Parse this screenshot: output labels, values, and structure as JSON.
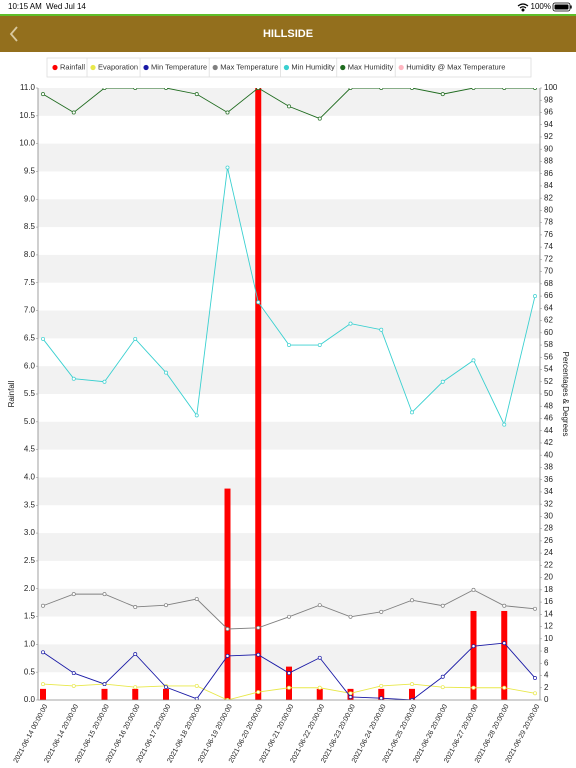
{
  "status_bar": {
    "time": "10:15 AM",
    "date": "Wed Jul 14",
    "battery": "100%"
  },
  "header": {
    "title": "HILLSIDE"
  },
  "chart_data": {
    "type": "combo",
    "categories": [
      "2021-06-14 00:00:00",
      "2021-06-14 20:00:00",
      "2021-06-15 20:00:00",
      "2021-06-16 20:00:00",
      "2021-06-17 20:00:00",
      "2021-06-18 20:00:00",
      "2021-06-19 20:00:00",
      "2021-06-20 20:00:00",
      "2021-06-21 20:00:00",
      "2021-06-22 20:00:00",
      "2021-06-23 20:00:00",
      "2021-06-24 20:00:00",
      "2021-06-25 20:00:00",
      "2021-06-26 20:00:00",
      "2021-06-27 20:00:00",
      "2021-06-28 20:00:00",
      "2021-06-29 20:00:00"
    ],
    "y_label": "Rainfall",
    "y2_label": "Percentages & Degrees",
    "ylim": [
      0,
      11
    ],
    "yticks": [
      {
        "value": 0,
        "label": "0.0"
      },
      0.5,
      {
        "value": 1,
        "label": "1.0"
      },
      1.5,
      {
        "value": 2,
        "label": "2.0"
      },
      2.5,
      {
        "value": 3,
        "label": "3.0"
      },
      3.5,
      {
        "value": 4,
        "label": "4.0"
      },
      4.5,
      {
        "value": 5,
        "label": "5.0"
      },
      5.5,
      {
        "value": 6,
        "label": "6.0"
      },
      6.5,
      {
        "value": 7,
        "label": "7.0"
      },
      7.5,
      {
        "value": 8,
        "label": "8.0"
      },
      8.5,
      {
        "value": 9,
        "label": "9.0"
      },
      9.5,
      {
        "value": 10,
        "label": "10.0"
      },
      10.5,
      {
        "value": 11,
        "label": "11.0"
      }
    ],
    "y2lim": [
      0,
      100
    ],
    "y2ticks": [
      0,
      2,
      4,
      6,
      8,
      10,
      12,
      14,
      16,
      18,
      20,
      22,
      24,
      26,
      28,
      30,
      32,
      34,
      36,
      38,
      40,
      42,
      44,
      46,
      48,
      50,
      52,
      54,
      56,
      58,
      60,
      62,
      64,
      66,
      68,
      70,
      72,
      74,
      76,
      78,
      80,
      82,
      84,
      86,
      88,
      90,
      92,
      94,
      96,
      98,
      100
    ],
    "grid": true,
    "legend": "top",
    "series": [
      {
        "name": "Rainfall",
        "type": "bar",
        "color": "#ff0000",
        "values": [
          0.2,
          0,
          0.2,
          0.2,
          0.2,
          0,
          3.8,
          11,
          0.6,
          0.2,
          0.2,
          0.2,
          0.2,
          0,
          1.6,
          1.6,
          0
        ]
      },
      {
        "name": "Evaporation",
        "type": "line",
        "axis": "y2",
        "color": "#e8e84a",
        "values": [
          2.6,
          2.3,
          2.6,
          2.1,
          2.3,
          2.3,
          0,
          1.3,
          2,
          2,
          1.1,
          2.3,
          2.6,
          2.1,
          2,
          2,
          1.1
        ]
      },
      {
        "name": "Min Temperature",
        "type": "line",
        "axis": "y2",
        "color": "#1a1aa6",
        "values": [
          7.8,
          4.4,
          2.6,
          7.5,
          2.1,
          0.2,
          7.2,
          7.4,
          4.4,
          6.9,
          0.5,
          0.3,
          0,
          3.8,
          8.8,
          9.3,
          3.6
        ]
      },
      {
        "name": "Max Temperature",
        "type": "line",
        "axis": "y2",
        "color": "#808080",
        "values": [
          15.4,
          17.3,
          17.3,
          15.2,
          15.5,
          16.5,
          11.6,
          11.8,
          13.6,
          15.5,
          13.6,
          14.4,
          16.3,
          15.4,
          18,
          15.4,
          14.9
        ]
      },
      {
        "name": "Min Humidity",
        "type": "line",
        "axis": "y2",
        "color": "#3ad0d0",
        "values": [
          59,
          52.5,
          52,
          59,
          53.5,
          46.5,
          87,
          65,
          58,
          58,
          61.5,
          60.5,
          47,
          52,
          55.5,
          45,
          66
        ]
      },
      {
        "name": "Max Humidity",
        "type": "line",
        "axis": "y2",
        "color": "#1f6b1f",
        "values": [
          99,
          96,
          100,
          100,
          100,
          99,
          96,
          100,
          97,
          95,
          100,
          100,
          100,
          99,
          100,
          100,
          100
        ]
      },
      {
        "name": "Humidity @ Max Temperature",
        "type": "line",
        "axis": "y2",
        "color": "#ffb6c1",
        "values": [
          null,
          null,
          null,
          null,
          null,
          null,
          null,
          null,
          null,
          null,
          null,
          null,
          null,
          null,
          null,
          null,
          null
        ]
      }
    ]
  }
}
